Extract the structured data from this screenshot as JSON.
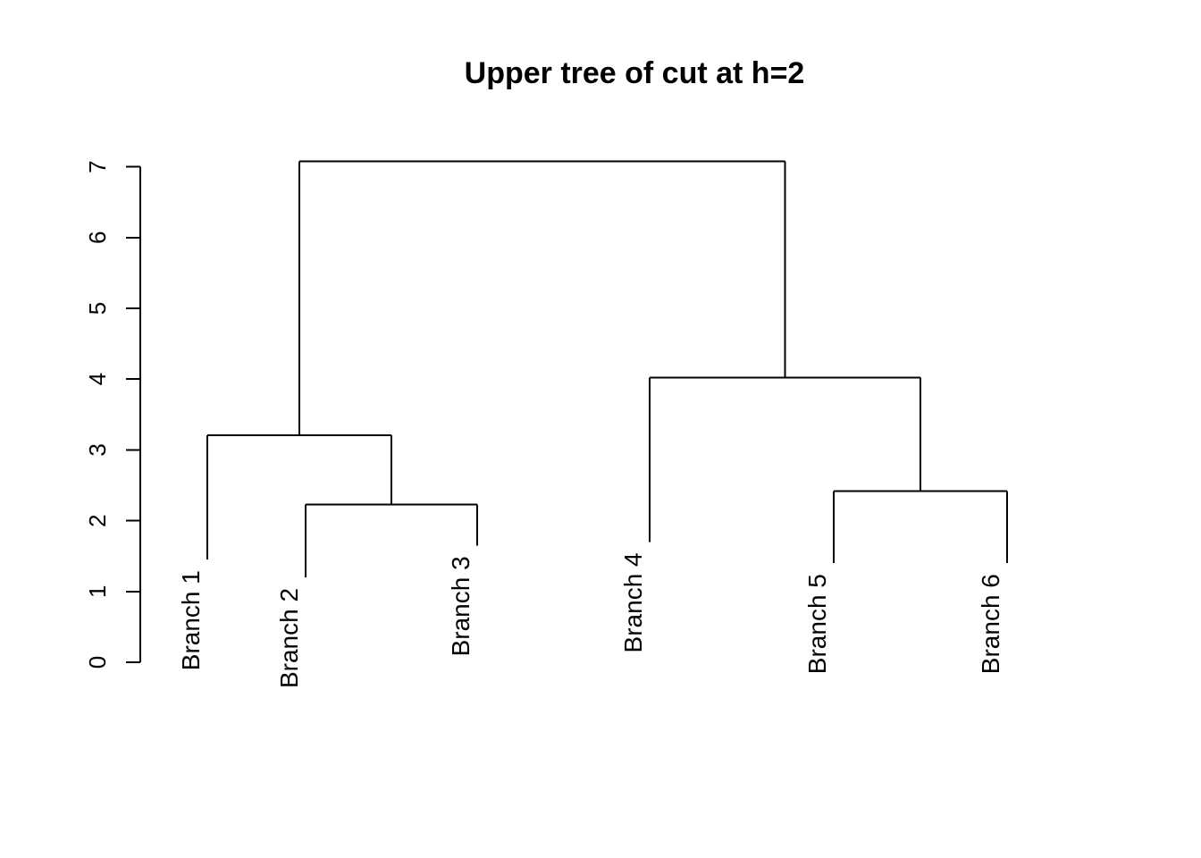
{
  "chart_data": {
    "type": "dendrogram",
    "title": "Upper tree of cut at h=2",
    "xlabel": "",
    "ylabel": "",
    "ylim": [
      0,
      7
    ],
    "yticks": [
      0,
      1,
      2,
      3,
      4,
      5,
      6,
      7
    ],
    "leaves": [
      {
        "label": "Branch 1",
        "x": 1,
        "bottom": 1.45
      },
      {
        "label": "Branch 2",
        "x": 2,
        "bottom": 1.2
      },
      {
        "label": "Branch 3",
        "x": 3,
        "bottom": 1.65
      },
      {
        "label": "Branch 4",
        "x": 4,
        "bottom": 1.7
      },
      {
        "label": "Branch 5",
        "x": 5,
        "bottom": 1.4
      },
      {
        "label": "Branch 6",
        "x": 6,
        "bottom": 1.4
      }
    ],
    "merges": [
      {
        "left": "Branch 2",
        "right": "Branch 3",
        "height": 2.23
      },
      {
        "left": "Branch 5",
        "right": "Branch 6",
        "height": 2.42
      },
      {
        "left": "Branch 1",
        "right": "merge:Branch 2+Branch 3",
        "height": 3.21
      },
      {
        "left": "Branch 4",
        "right": "merge:Branch 5+Branch 6",
        "height": 4.02
      },
      {
        "left": "merge:Branch 1+Branch 2+Branch 3",
        "right": "merge:Branch 4+Branch 5+Branch 6",
        "height": 7.08
      }
    ],
    "grid": false,
    "legend": "none"
  }
}
